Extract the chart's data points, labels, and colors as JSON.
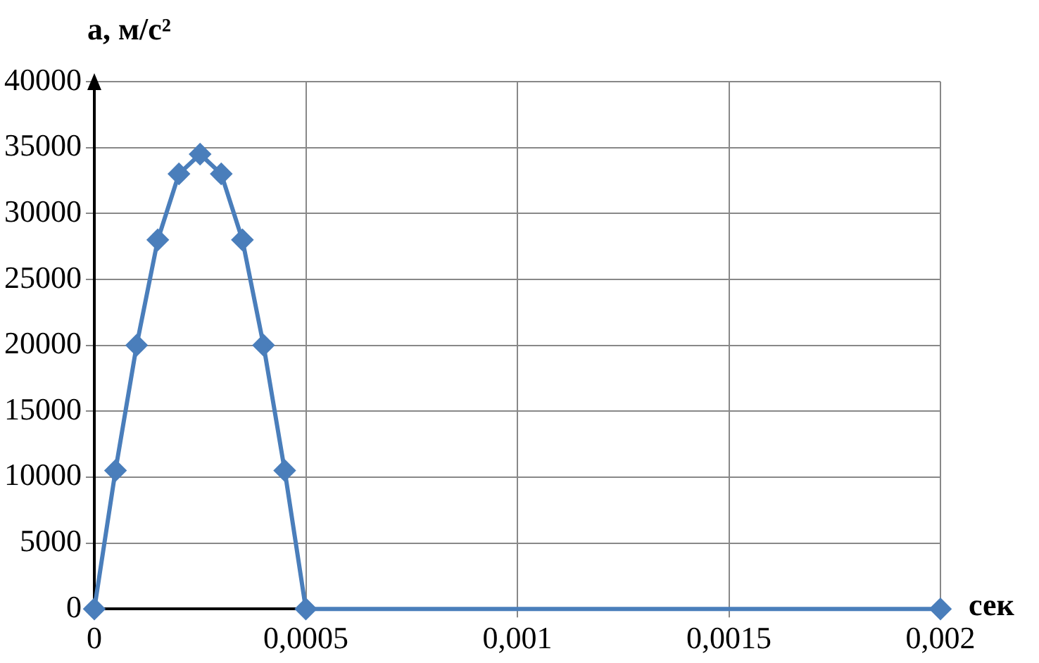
{
  "chart_data": {
    "type": "line",
    "ylabel": "а, м/с²",
    "xlabel": "сек",
    "x": [
      0,
      5e-05,
      0.0001,
      0.00015,
      0.0002,
      0.00025,
      0.0003,
      0.00035,
      0.0004,
      0.00045,
      0.0005,
      0.002
    ],
    "series": [
      {
        "color": "#4a7ebb",
        "values": [
          0,
          10500,
          20000,
          28000,
          33000,
          34500,
          33000,
          28000,
          20000,
          10500,
          0,
          0
        ]
      }
    ],
    "xlim": [
      0,
      0.002
    ],
    "xticks": [
      0,
      {
        "value": 0.0005,
        "label": "0,0005"
      },
      {
        "value": 0.001,
        "label": "0,001"
      },
      {
        "value": 0.0015,
        "label": "0,0015"
      },
      {
        "value": 0.002,
        "label": "0,002"
      }
    ],
    "ylim": [
      0,
      40000
    ],
    "yticks": [
      0,
      5000,
      10000,
      15000,
      20000,
      25000,
      30000,
      35000,
      40000
    ],
    "grid": true,
    "marker": "diamond",
    "line_style": "solid",
    "legend": false
  }
}
